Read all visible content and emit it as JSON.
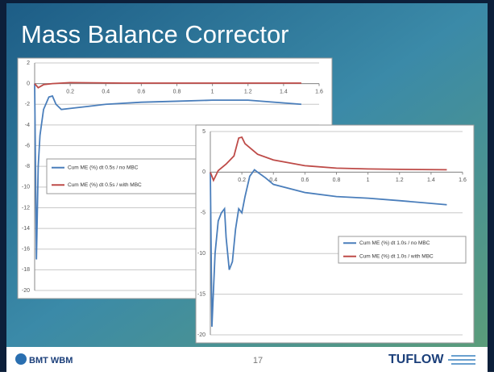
{
  "slide": {
    "title": "Mass Balance Corrector",
    "page": "17",
    "logo_left": "BMT WBM",
    "logo_right": "TUFLOW"
  },
  "chart_data": [
    {
      "type": "line",
      "xlim": [
        0,
        1.6
      ],
      "ylim": [
        -20,
        2
      ],
      "xticks": [
        0.2,
        0.4,
        0.6,
        0.8,
        1,
        1.2,
        1.4,
        1.6
      ],
      "yticks": [
        -20,
        -18,
        -16,
        -14,
        -12,
        -10,
        -8,
        -6,
        -4,
        -2,
        0,
        2
      ],
      "grid": true,
      "legend": "left",
      "series": [
        {
          "name": "Cum ME (%)  dt 0.5s / no MBC",
          "color": "#4a7ebb",
          "x": [
            0,
            0.01,
            0.02,
            0.03,
            0.05,
            0.08,
            0.1,
            0.12,
            0.15,
            0.2,
            0.3,
            0.4,
            0.6,
            0.8,
            1.0,
            1.2,
            1.5
          ],
          "values": [
            0,
            -17,
            -8,
            -5,
            -2.5,
            -1.3,
            -1.2,
            -2,
            -2.5,
            -2.4,
            -2.2,
            -2,
            -1.8,
            -1.7,
            -1.6,
            -1.6,
            -2
          ]
        },
        {
          "name": "Cum ME (%)  dt 0.5s / with MBC",
          "color": "#be4b48",
          "x": [
            0,
            0.02,
            0.05,
            0.1,
            0.2,
            0.5,
            1.0,
            1.5
          ],
          "values": [
            0,
            -0.4,
            -0.1,
            0,
            0.1,
            0.05,
            0.05,
            0.05
          ]
        }
      ]
    },
    {
      "type": "line",
      "xlim": [
        0,
        1.6
      ],
      "ylim": [
        -20,
        5
      ],
      "xticks": [
        0.2,
        0.4,
        0.6,
        0.8,
        1,
        1.2,
        1.4,
        1.6
      ],
      "yticks": [
        -20,
        -15,
        -10,
        -5,
        0,
        5
      ],
      "grid": true,
      "legend": "right",
      "series": [
        {
          "name": "Cum ME (%)  dt 1.0s / no MBC",
          "color": "#4a7ebb",
          "x": [
            0,
            0.01,
            0.03,
            0.05,
            0.07,
            0.09,
            0.1,
            0.12,
            0.14,
            0.16,
            0.18,
            0.2,
            0.22,
            0.25,
            0.28,
            0.3,
            0.35,
            0.4,
            0.6,
            0.8,
            1.0,
            1.2,
            1.5
          ],
          "values": [
            0,
            -19,
            -10,
            -6,
            -5,
            -4.5,
            -8,
            -12,
            -11,
            -7,
            -4.5,
            -5,
            -3,
            -0.5,
            0.3,
            0,
            -0.7,
            -1.5,
            -2.5,
            -3,
            -3.2,
            -3.5,
            -4
          ]
        },
        {
          "name": "Cum ME (%)  dt 1.0s / with MBC",
          "color": "#be4b48",
          "x": [
            0,
            0.02,
            0.05,
            0.1,
            0.15,
            0.18,
            0.2,
            0.22,
            0.3,
            0.4,
            0.6,
            0.8,
            1.0,
            1.2,
            1.5
          ],
          "values": [
            0,
            -1,
            0.2,
            1,
            2,
            4.2,
            4.3,
            3.5,
            2.2,
            1.5,
            0.8,
            0.5,
            0.4,
            0.35,
            0.3
          ]
        }
      ]
    }
  ]
}
